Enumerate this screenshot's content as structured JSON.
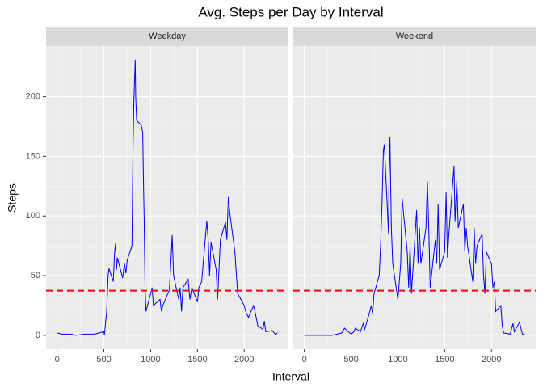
{
  "chart_data": {
    "type": "line",
    "title": "Avg. Steps per Day by Interval",
    "x_label": "Interval",
    "y_label": "Steps",
    "xlim": [
      -117.75,
      2472.75
    ],
    "ylim": [
      -11.6,
      242.4
    ],
    "xticks": [
      0,
      500,
      1000,
      1500,
      2000
    ],
    "yticks": [
      0,
      50,
      100,
      150,
      200
    ],
    "grid": true,
    "reference_line": {
      "value": 37.38,
      "color": "#ff0000"
    },
    "series": [
      {
        "name": "Weekday",
        "color": "#0000ff",
        "x": [
          0,
          50,
          100,
          150,
          200,
          300,
          400,
          500,
          505,
          530,
          545,
          555,
          600,
          615,
          625,
          635,
          645,
          700,
          720,
          735,
          750,
          800,
          810,
          820,
          835,
          840,
          850,
          900,
          915,
          925,
          930,
          940,
          950,
          1000,
          1015,
          1030,
          1100,
          1115,
          1130,
          1200,
          1215,
          1230,
          1245,
          1300,
          1315,
          1330,
          1345,
          1400,
          1420,
          1440,
          1500,
          1515,
          1545,
          1600,
          1615,
          1630,
          1645,
          1700,
          1715,
          1730,
          1745,
          1800,
          1815,
          1830,
          1845,
          1900,
          1915,
          1930,
          2000,
          2015,
          2045,
          2100,
          2115,
          2145,
          2200,
          2215,
          2230,
          2300,
          2330,
          2355
        ],
        "values": [
          2,
          1,
          1,
          1,
          0,
          1,
          1,
          3,
          0,
          20,
          50,
          56,
          45,
          70,
          77,
          55,
          65,
          48,
          60,
          52,
          63,
          75,
          150,
          195,
          231,
          200,
          180,
          176,
          170,
          120,
          100,
          40,
          20,
          35,
          40,
          25,
          30,
          20,
          25,
          38,
          60,
          84,
          50,
          30,
          40,
          20,
          40,
          47,
          30,
          40,
          28,
          40,
          45,
          96,
          80,
          50,
          78,
          55,
          30,
          55,
          80,
          95,
          80,
          116,
          103,
          70,
          52,
          35,
          25,
          20,
          15,
          25,
          20,
          8,
          5,
          12,
          3,
          4,
          1,
          2
        ]
      },
      {
        "name": "Weekend",
        "color": "#0000ff",
        "x": [
          0,
          100,
          200,
          300,
          400,
          430,
          500,
          530,
          545,
          600,
          630,
          645,
          700,
          715,
          730,
          745,
          800,
          815,
          830,
          845,
          855,
          900,
          905,
          915,
          930,
          945,
          1000,
          1015,
          1030,
          1045,
          1100,
          1115,
          1130,
          1145,
          1200,
          1215,
          1230,
          1245,
          1300,
          1315,
          1330,
          1345,
          1400,
          1415,
          1430,
          1445,
          1500,
          1515,
          1530,
          1545,
          1600,
          1610,
          1630,
          1645,
          1700,
          1715,
          1730,
          1745,
          1800,
          1815,
          1830,
          1845,
          1900,
          1915,
          1930,
          1945,
          2000,
          2015,
          2030,
          2045,
          2100,
          2115,
          2130,
          2200,
          2230,
          2245,
          2300,
          2330,
          2355
        ],
        "values": [
          0,
          0,
          0,
          0,
          2,
          6,
          1,
          3,
          6,
          3,
          10,
          5,
          20,
          25,
          18,
          35,
          50,
          75,
          110,
          155,
          160,
          85,
          130,
          166,
          90,
          60,
          30,
          45,
          60,
          115,
          70,
          40,
          75,
          35,
          105,
          60,
          90,
          60,
          90,
          129,
          90,
          40,
          80,
          60,
          110,
          55,
          70,
          120,
          65,
          85,
          142,
          95,
          130,
          90,
          110,
          70,
          90,
          75,
          45,
          90,
          60,
          75,
          85,
          50,
          35,
          70,
          60,
          40,
          45,
          20,
          25,
          8,
          2,
          1,
          10,
          3,
          11,
          1,
          1
        ]
      }
    ]
  }
}
